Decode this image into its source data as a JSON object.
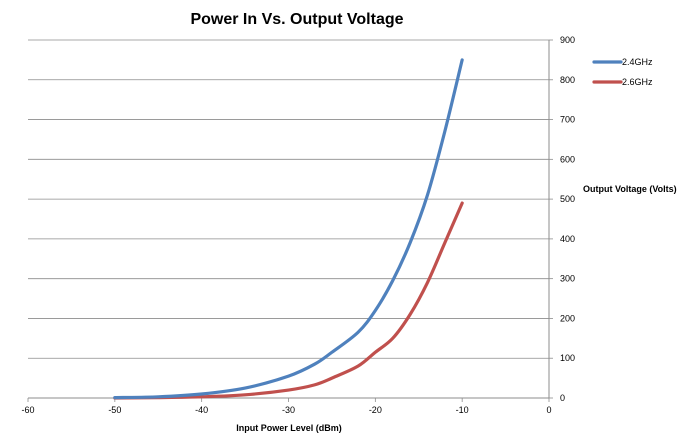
{
  "chart_data": {
    "type": "line",
    "title": "Power In Vs. Output Voltage",
    "xlabel": "Input Power Level (dBm)",
    "ylabel": "Output Voltage (Volts)",
    "xlim": [
      -60,
      0
    ],
    "ylim": [
      0,
      900
    ],
    "xticks": [
      -60,
      -50,
      -40,
      -30,
      -20,
      -10,
      0
    ],
    "yticks": [
      0,
      100,
      200,
      300,
      400,
      500,
      600,
      700,
      800,
      900
    ],
    "y_axis_side": "right",
    "grid": "horizontal",
    "legend_position": "right",
    "series": [
      {
        "name": "2.4GHz",
        "color": "#4f81bd",
        "points": [
          [
            -50,
            1
          ],
          [
            -45,
            3
          ],
          [
            -40,
            10
          ],
          [
            -35,
            25
          ],
          [
            -30,
            55
          ],
          [
            -27,
            85
          ],
          [
            -25,
            115
          ],
          [
            -22,
            165
          ],
          [
            -20,
            220
          ],
          [
            -18,
            295
          ],
          [
            -16,
            390
          ],
          [
            -14,
            510
          ],
          [
            -12,
            670
          ],
          [
            -10,
            850
          ]
        ]
      },
      {
        "name": "2.6GHz",
        "color": "#c0504d",
        "points": [
          [
            -50,
            0
          ],
          [
            -45,
            1
          ],
          [
            -40,
            3
          ],
          [
            -35,
            8
          ],
          [
            -30,
            20
          ],
          [
            -27,
            33
          ],
          [
            -25,
            50
          ],
          [
            -22,
            80
          ],
          [
            -20,
            115
          ],
          [
            -18,
            150
          ],
          [
            -16,
            210
          ],
          [
            -14,
            290
          ],
          [
            -12,
            390
          ],
          [
            -10,
            490
          ]
        ]
      }
    ]
  }
}
